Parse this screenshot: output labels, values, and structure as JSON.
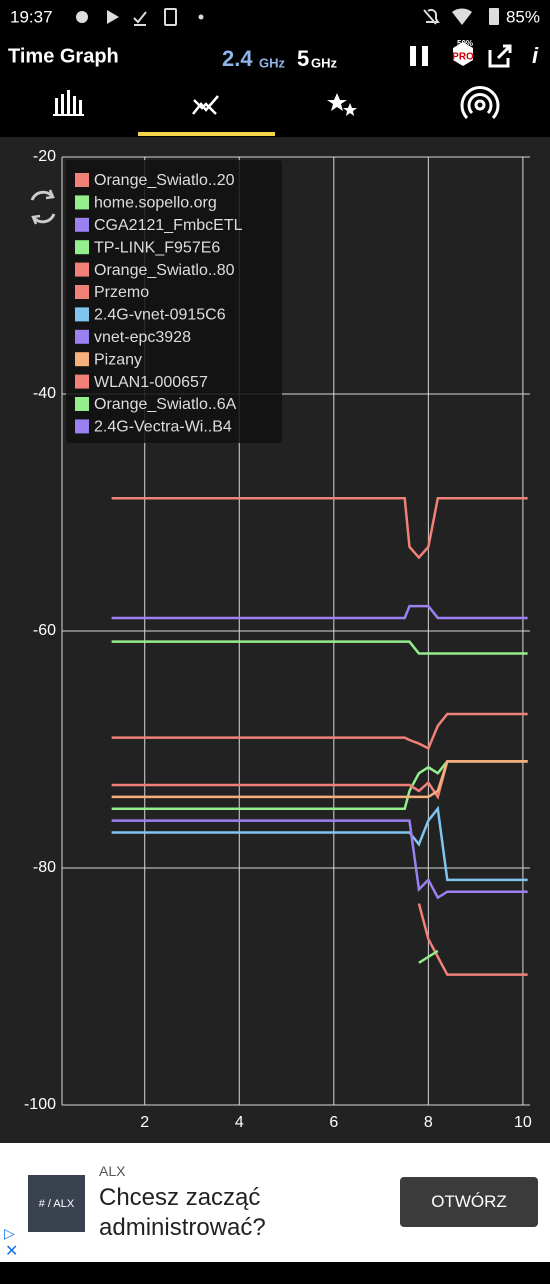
{
  "status_bar": {
    "time": "19:37",
    "battery": "85%"
  },
  "app_bar": {
    "title": "Time Graph",
    "band_24": "2.4",
    "band_24_unit": "GHz",
    "band_5": "5",
    "band_5_unit": "GHz",
    "pro_discount": "50%",
    "pro_badge": "PRO"
  },
  "chart_data": {
    "type": "line",
    "x": [
      1.3,
      7.5,
      7.6,
      7.8,
      8.0,
      8.2,
      8.4,
      10.1
    ],
    "xlim": [
      0.25,
      10.15
    ],
    "xticks": [
      2,
      4,
      6,
      8,
      10
    ],
    "ylim": [
      -100,
      -20
    ],
    "yticks": [
      -20,
      -40,
      -60,
      -80,
      -100
    ],
    "grid": true,
    "legend": "top-left",
    "series": [
      {
        "name": "Orange_Swiatlo..20",
        "color": "#f08078",
        "values": [
          -48.8,
          -48.8,
          -52.9,
          -53.8,
          -52.9,
          -48.8,
          -48.8,
          -48.8
        ]
      },
      {
        "name": "home.sopello.org",
        "color": "#94ee8c",
        "values": [
          -60.9,
          -60.9,
          -60.9,
          -61.9,
          -61.9,
          -61.9,
          -61.9,
          -61.9
        ]
      },
      {
        "name": "CGA2121_FmbcETL",
        "color": "#9a80f0",
        "values": [
          -58.9,
          -58.9,
          -57.9,
          -57.9,
          -57.9,
          -58.9,
          -58.9,
          -58.9
        ]
      },
      {
        "name": "TP-LINK_F957E6",
        "color": "#94ee8c",
        "values": [
          -75,
          -75,
          -73.5,
          -72,
          -71.5,
          -72,
          -71,
          -71
        ]
      },
      {
        "name": "Orange_Swiatlo..80",
        "color": "#f08078",
        "values": [
          -69,
          -69,
          -69.2,
          -69.5,
          -69.9,
          -68,
          -67,
          -67
        ]
      },
      {
        "name": "Przemo",
        "color": "#f08078",
        "values": [
          -73,
          -73,
          -73,
          -73.5,
          -72.8,
          -74,
          -71,
          -71
        ]
      },
      {
        "name": "2.4G-vnet-0915C6",
        "color": "#80c4f0",
        "values": [
          -77,
          -77,
          -77,
          -78,
          -76,
          -75,
          -81,
          -81
        ]
      },
      {
        "name": "vnet-epc3928",
        "color": "#9a80f0",
        "values": [
          -76,
          -76,
          -76,
          -81.8,
          -81,
          -82.5,
          -82,
          -82
        ]
      },
      {
        "name": "Pizany",
        "color": "#f5b07c",
        "values": [
          -74,
          -74,
          -74,
          -74,
          -74,
          -73.5,
          -71,
          -71
        ]
      },
      {
        "name": "WLAN1-000657",
        "color": "#f08078",
        "values": [
          null,
          null,
          null,
          -83,
          -86,
          -87.5,
          -89,
          -89
        ]
      },
      {
        "name": "Orange_Swiatlo..6A",
        "color": "#94ee8c",
        "values": [
          null,
          null,
          null,
          -88,
          -87.5,
          -87,
          null,
          null
        ]
      },
      {
        "name": "2.4G-Vectra-Wi..B4",
        "color": "#9a80f0",
        "values": [
          null,
          null,
          null,
          null,
          null,
          null,
          null,
          null
        ]
      }
    ]
  },
  "ad": {
    "advertiser": "ALX",
    "logo": "# / ALX",
    "headline": "Chcesz zacząć administrować?",
    "button": "OTWÓRZ"
  }
}
